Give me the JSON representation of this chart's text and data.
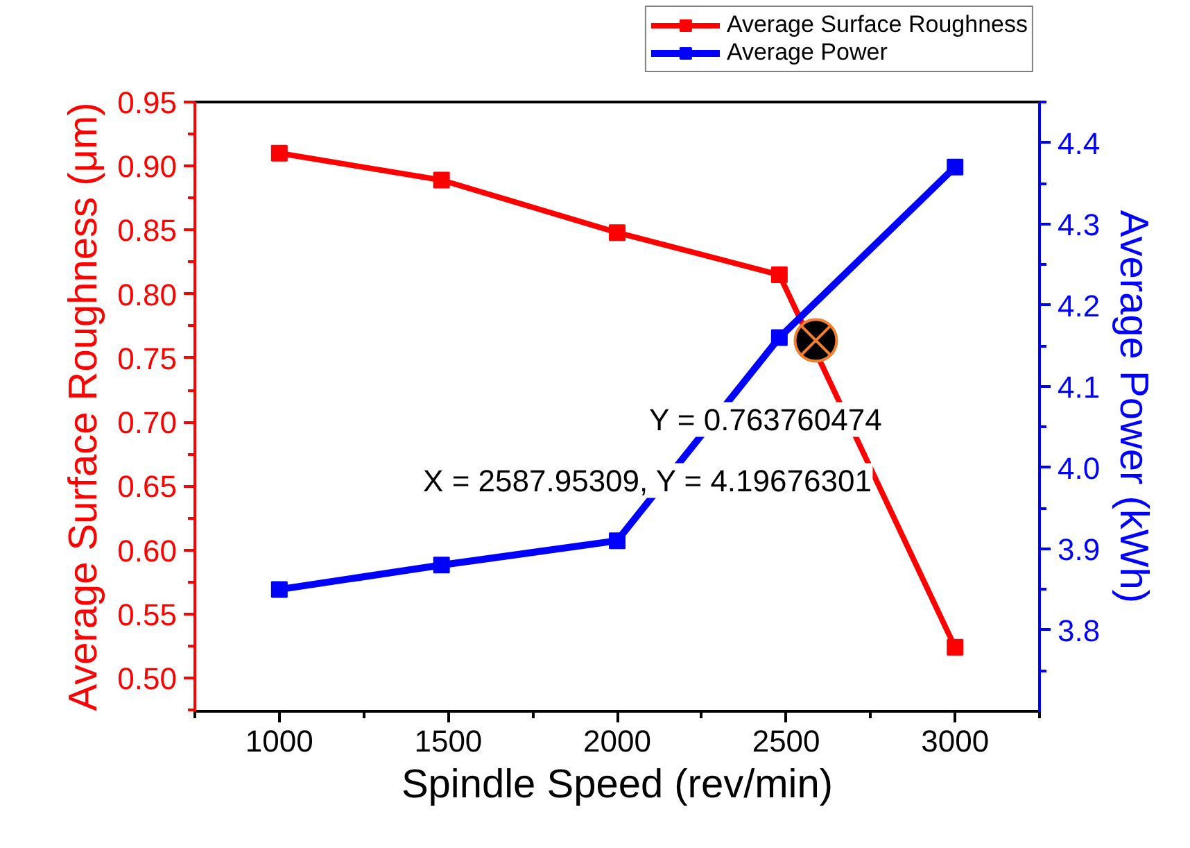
{
  "chart_data": {
    "type": "line",
    "xlabel": "Spindle Speed (rev/min)",
    "ylabel": "Average Surface Roughness (μm)",
    "y2label": "Average Power (kWh)",
    "x": [
      1000,
      1480,
      2000,
      2480,
      3000
    ],
    "series": [
      {
        "name": "Average Surface Roughness",
        "color": "#ff0000",
        "values": [
          0.91,
          0.889,
          0.848,
          0.815,
          0.524
        ]
      },
      {
        "name": "Average Power",
        "color": "#0000ff",
        "values": [
          3.85,
          3.88,
          3.91,
          4.16,
          4.37
        ],
        "axis": "y2"
      }
    ],
    "xlim": [
      750,
      3250
    ],
    "xticks": [
      1000,
      1500,
      2000,
      2500,
      3000
    ],
    "ylim": [
      0.474,
      0.95
    ],
    "yticks": [
      {
        "value": 0.5,
        "label": "0.50"
      },
      0.55,
      {
        "value": 0.6,
        "label": "0.60"
      },
      0.65,
      {
        "value": 0.7,
        "label": "0.70"
      },
      0.75,
      {
        "value": 0.8,
        "label": "0.80"
      },
      0.85,
      {
        "value": 0.9,
        "label": "0.90"
      },
      0.95
    ],
    "y2lim": [
      3.7,
      4.45
    ],
    "y2ticks": [
      3.8,
      3.9,
      {
        "value": 4,
        "label": "4.0"
      },
      4.1,
      4.2,
      4.3,
      4.4
    ],
    "annotations": [
      {
        "text": "Y = 0.763760474",
        "x": 2587.95309,
        "y": 0.763760474
      },
      "X = 2587.95309, Y = 4.19676301"
    ],
    "marker": "square",
    "line_style": "solid",
    "grid": false,
    "legend": "top right"
  }
}
